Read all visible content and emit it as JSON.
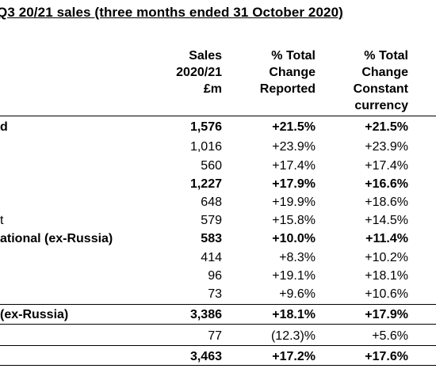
{
  "title": "Q3 20/21 sales (three months ended 31 October 2020)",
  "headers": {
    "sales": [
      "Sales",
      "2020/21",
      "£m"
    ],
    "reported": [
      "% Total",
      "Change",
      "Reported"
    ],
    "constant": [
      "% Total",
      "Change",
      "Constant",
      "currency"
    ]
  },
  "rows": [
    {
      "label": "d",
      "sales": "1,576",
      "reported": "+21.5%",
      "constant": "+21.5%",
      "bold": true
    },
    {
      "label": "",
      "sales": "1,016",
      "reported": "+23.9%",
      "constant": "+23.9%",
      "bold": false
    },
    {
      "label": "",
      "sales": "560",
      "reported": "+17.4%",
      "constant": "+17.4%",
      "bold": false
    },
    {
      "label": "",
      "sales": "1,227",
      "reported": "+17.9%",
      "constant": "+16.6%",
      "bold": true
    },
    {
      "label": "",
      "sales": "648",
      "reported": "+19.9%",
      "constant": "+18.6%",
      "bold": false
    },
    {
      "label": "t",
      "sales": "579",
      "reported": "+15.8%",
      "constant": "+14.5%",
      "bold": false
    },
    {
      "label": "ational (ex-Russia)",
      "sales": "583",
      "reported": "+10.0%",
      "constant": "+11.4%",
      "bold": true
    },
    {
      "label": "",
      "sales": "414",
      "reported": "+8.3%",
      "constant": "+10.2%",
      "bold": false
    },
    {
      "label": "",
      "sales": "96",
      "reported": "+19.1%",
      "constant": "+18.1%",
      "bold": false
    },
    {
      "label": "",
      "sales": "73",
      "reported": "+9.6%",
      "constant": "+10.6%",
      "bold": false
    },
    {
      "label": " (ex-Russia)",
      "sales": "3,386",
      "reported": "+18.1%",
      "constant": "+17.9%",
      "bold": true
    },
    {
      "label": "",
      "sales": "77",
      "reported": "(12.3)%",
      "constant": "+5.6%",
      "bold": false
    },
    {
      "label": "",
      "sales": "3,463",
      "reported": "+17.2%",
      "constant": "+17.6%",
      "bold": true
    }
  ]
}
